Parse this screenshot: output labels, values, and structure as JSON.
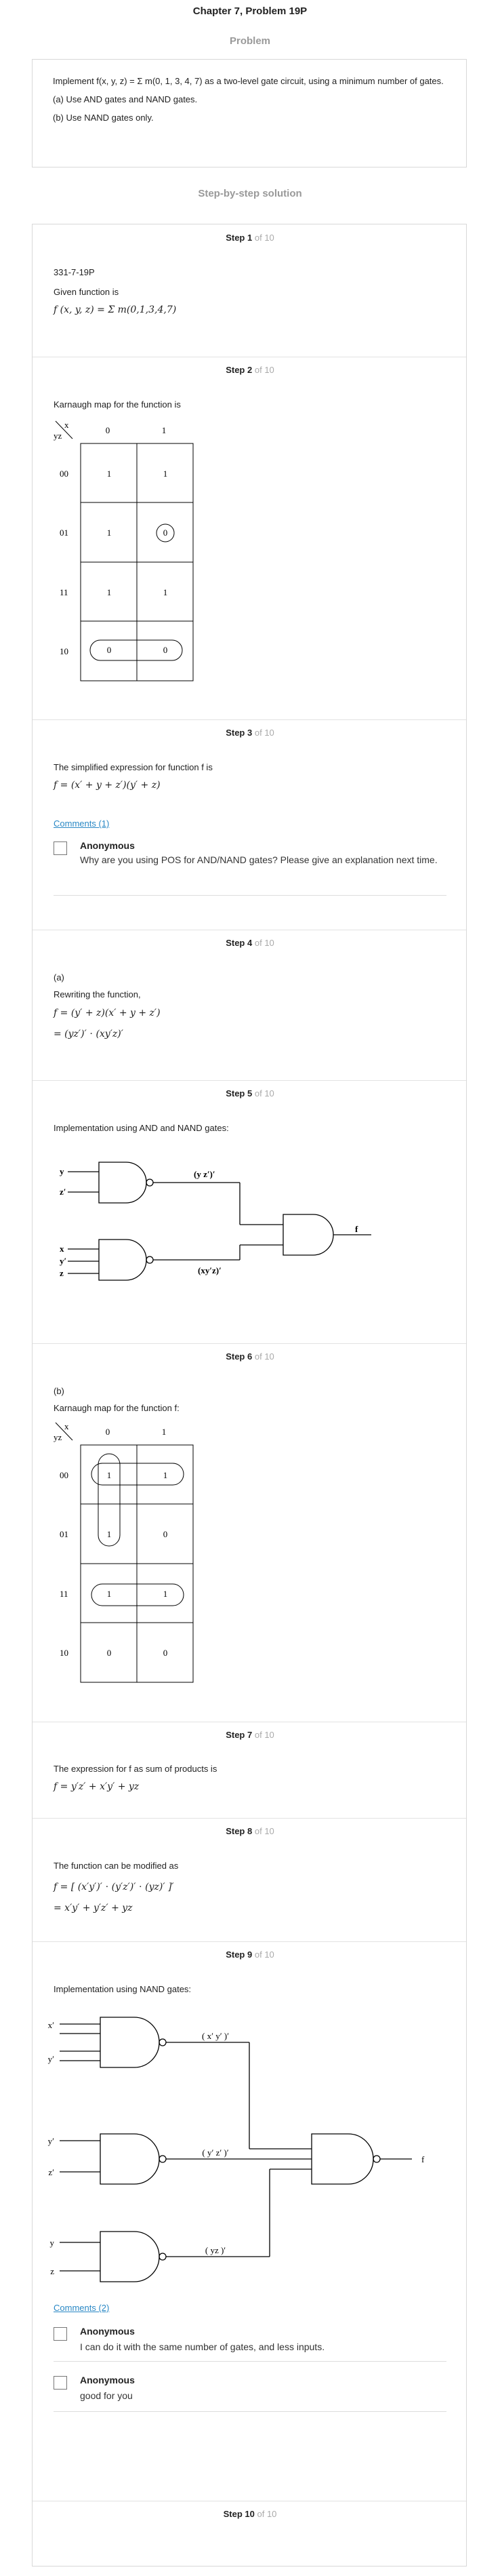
{
  "header": {
    "title": "Chapter 7, Problem 19P",
    "problem_label": "Problem",
    "solution_label": "Step-by-step solution"
  },
  "problem": {
    "line1": "Implement f(x, y, z) = Σ m(0, 1, 3, 4, 7) as a two-level gate circuit, using a minimum number of gates.",
    "line2": "(a) Use AND gates and NAND gates.",
    "line3": "(b) Use NAND gates only."
  },
  "step_prefix": "Step",
  "step_of": "of 10",
  "steps": [
    {
      "num": "1"
    },
    {
      "num": "2"
    },
    {
      "num": "3"
    },
    {
      "num": "4"
    },
    {
      "num": "5"
    },
    {
      "num": "6"
    },
    {
      "num": "7"
    },
    {
      "num": "8"
    },
    {
      "num": "9"
    },
    {
      "num": "10"
    }
  ],
  "step1": {
    "code": "331-7-19P",
    "text": "Given function is",
    "expr": "f (x, y, z) = Σ m(0,1,3,4,7)"
  },
  "step2": {
    "text": "Karnaugh map for the function is"
  },
  "kmap1": {
    "var_row": "yz",
    "var_col": "x",
    "cols": [
      "0",
      "1"
    ],
    "rows": [
      "00",
      "01",
      "11",
      "10"
    ],
    "cells": [
      [
        "1",
        "1"
      ],
      [
        "1",
        "0"
      ],
      [
        "1",
        "1"
      ],
      [
        "0",
        "0"
      ]
    ]
  },
  "step3": {
    "text": "The simplified expression for function f is",
    "expr": "f = (x′ + y + z′)(y′ + z)",
    "comments_link": "Comments (1)",
    "comment": {
      "name": "Anonymous",
      "text": "Why are you using POS for AND/NAND gates? Please give an explanation next time."
    }
  },
  "step4": {
    "label": "(a)",
    "text": "Rewriting the function,",
    "expr1": "f = (y′ + z)(x′ + y + z′)",
    "expr2": "= (yz′)′ ⋅ (xy′z)′"
  },
  "step5": {
    "text": "Implementation using AND and NAND gates:"
  },
  "circuit1": {
    "inputs1": [
      "y",
      "z′"
    ],
    "inputs2": [
      "x",
      "y′",
      "z"
    ],
    "label1": "(y z′)′",
    "label2": "(xy′z)′",
    "output": "f"
  },
  "step6": {
    "label": "(b)",
    "text": "Karnaugh map for the function f:"
  },
  "kmap2": {
    "var_row": "yz",
    "var_col": "x",
    "cols": [
      "0",
      "1"
    ],
    "rows": [
      "00",
      "01",
      "11",
      "10"
    ],
    "cells": [
      [
        "1",
        "1"
      ],
      [
        "1",
        "0"
      ],
      [
        "1",
        "1"
      ],
      [
        "0",
        "0"
      ]
    ]
  },
  "step7": {
    "text": "The expression for f as sum of products is",
    "expr": "f = y′z′ + x′y′ + yz"
  },
  "step8": {
    "text": "The function can be modified as",
    "expr1": "f = [ (x′y′)′ ⋅ (y′z′)′ ⋅ (yz)′ ]′",
    "expr2": "= x′y′ + y′z′ + yz"
  },
  "step9": {
    "text": "Implementation using NAND gates:",
    "comments_link": "Comments (2)",
    "comments": [
      {
        "name": "Anonymous",
        "text": "I can do it with the same number of gates, and less inputs."
      },
      {
        "name": "Anonymous",
        "text": "good for you"
      }
    ]
  },
  "circuit2": {
    "in1": [
      "x′",
      "y′"
    ],
    "in2": [
      "y′",
      "z′"
    ],
    "in3": [
      "y",
      "z"
    ],
    "label1": "( x′ y′ )′",
    "label2": "( y′ z′ )′",
    "label3": "( yz )′",
    "output": "f"
  }
}
